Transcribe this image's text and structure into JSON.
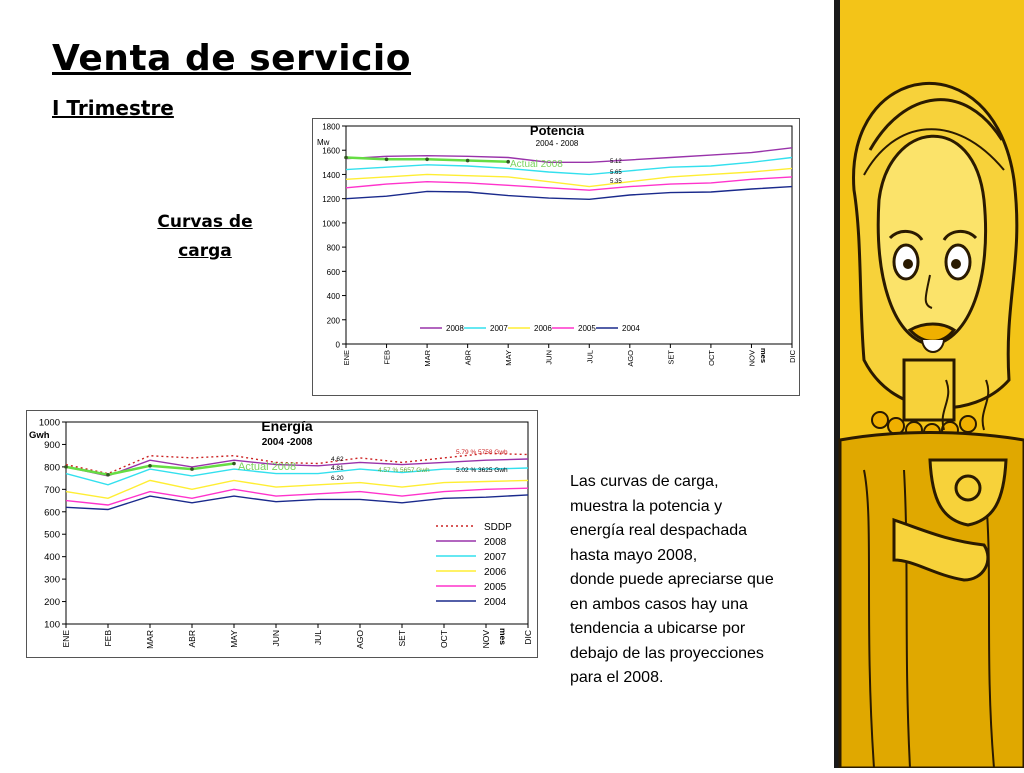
{
  "slide": {
    "title": "Venta de servicio",
    "subtitle": "I Trimestre",
    "caption_lines": [
      "Curvas de",
      "carga"
    ],
    "body_lines": [
      "Las curvas de carga,",
      "muestra la potencia y",
      "energía real despachada",
      "hasta mayo 2008,",
      "donde puede apreciarse que",
      "en ambos casos hay una",
      "tendencia a ubicarse por",
      "debajo de las proyecciones",
      "para el 2008."
    ]
  },
  "chart_data": [
    {
      "type": "line",
      "title": "Potencia",
      "subtitle": "2004 - 2008",
      "ylabel": "Mw",
      "xlabel": "mes",
      "ylim": [
        0,
        1800
      ],
      "yticks": [
        0,
        200,
        400,
        600,
        800,
        1000,
        1200,
        1400,
        1600,
        1800
      ],
      "categories": [
        "ENE",
        "FEB",
        "MAR",
        "ABR",
        "MAY",
        "JUN",
        "JUL",
        "AGO",
        "SET",
        "OCT",
        "NOV",
        "DIC"
      ],
      "legend_position": "bottom",
      "series": [
        {
          "name": "2004",
          "color": "#1a2a8c",
          "values": [
            1200,
            1220,
            1260,
            1255,
            1225,
            1205,
            1195,
            1230,
            1250,
            1255,
            1280,
            1300
          ]
        },
        {
          "name": "2005",
          "color": "#ff33cc",
          "values": [
            1290,
            1320,
            1340,
            1330,
            1310,
            1290,
            1270,
            1300,
            1320,
            1330,
            1360,
            1380
          ]
        },
        {
          "name": "2006",
          "color": "#ffee33",
          "values": [
            1360,
            1380,
            1400,
            1390,
            1380,
            1340,
            1300,
            1340,
            1380,
            1400,
            1420,
            1450
          ]
        },
        {
          "name": "2007",
          "color": "#33e0ee",
          "values": [
            1440,
            1460,
            1480,
            1470,
            1450,
            1420,
            1400,
            1430,
            1460,
            1470,
            1500,
            1540
          ]
        },
        {
          "name": "2008",
          "color": "#9933aa",
          "values": [
            1530,
            1550,
            1555,
            1550,
            1540,
            1500,
            1500,
            1520,
            1540,
            1560,
            1580,
            1620
          ]
        }
      ],
      "highlight": {
        "name": "Actual 2008",
        "color": "#66dd44",
        "values": [
          1540,
          1525,
          1525,
          1515,
          1505
        ]
      },
      "annotations": [
        "Actual 2008",
        "5.12",
        "5.65",
        "5.35"
      ]
    },
    {
      "type": "line",
      "title": "Energía",
      "subtitle": "2004 -2008",
      "ylabel": "Gwh",
      "xlabel": "mes",
      "ylim": [
        100,
        1000
      ],
      "yticks": [
        100,
        200,
        300,
        400,
        500,
        600,
        700,
        800,
        900,
        1000
      ],
      "categories": [
        "ENE",
        "FEB",
        "MAR",
        "ABR",
        "MAY",
        "JUN",
        "JUL",
        "AGO",
        "SET",
        "OCT",
        "NOV",
        "DIC"
      ],
      "legend_position": "right",
      "series": [
        {
          "name": "SDDP",
          "color": "#cc2222",
          "dashed": true,
          "values": [
            810,
            770,
            850,
            840,
            850,
            820,
            815,
            840,
            820,
            840,
            860,
            855
          ]
        },
        {
          "name": "2008",
          "color": "#9933aa",
          "values": [
            800,
            760,
            830,
            800,
            830,
            810,
            805,
            820,
            810,
            820,
            830,
            835
          ]
        },
        {
          "name": "2007",
          "color": "#33e0ee",
          "values": [
            770,
            720,
            790,
            760,
            790,
            770,
            770,
            790,
            775,
            790,
            790,
            795
          ]
        },
        {
          "name": "2006",
          "color": "#ffee33",
          "values": [
            690,
            660,
            740,
            700,
            740,
            710,
            720,
            730,
            710,
            730,
            735,
            740
          ]
        },
        {
          "name": "2005",
          "color": "#ff33cc",
          "values": [
            650,
            630,
            690,
            660,
            700,
            670,
            680,
            690,
            670,
            690,
            700,
            705
          ]
        },
        {
          "name": "2004",
          "color": "#1a2a8c",
          "values": [
            620,
            610,
            670,
            640,
            670,
            645,
            655,
            655,
            640,
            660,
            665,
            675
          ]
        }
      ],
      "highlight": {
        "name": "Actual 2008",
        "color": "#66dd44",
        "values": [
          800,
          765,
          805,
          790,
          815
        ]
      },
      "annotations": [
        "Actual 2008",
        "4.62",
        "4.81",
        "6.20",
        "5.79 % 5758 Gwh",
        "4.57 % 5657 Gwh",
        "5.02 % 3625 Gwh"
      ]
    }
  ]
}
